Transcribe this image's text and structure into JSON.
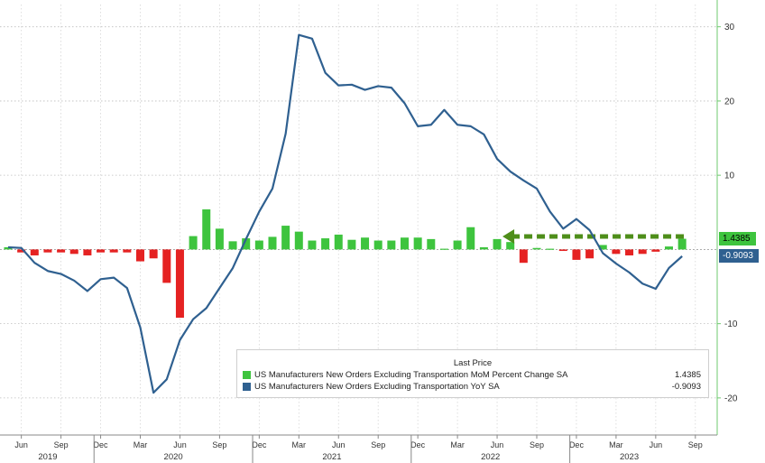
{
  "chart_data": {
    "type": "bar+line",
    "x_month_labels": [
      "Jun",
      "Sep",
      "Dec",
      "Mar",
      "Jun",
      "Sep",
      "Dec",
      "Mar",
      "Jun",
      "Sep",
      "Dec",
      "Mar",
      "Jun",
      "Sep",
      "Dec",
      "Mar",
      "Jun",
      "Sep"
    ],
    "year_labels": [
      "2019",
      "2020",
      "2021",
      "2022",
      "2023"
    ],
    "y_ticks": [
      30,
      20,
      10,
      -10,
      -20
    ],
    "ylim": [
      -25,
      33
    ],
    "series": [
      {
        "name": "US Manufacturers New Orders Excluding Transportation MoM Percent Change SA",
        "type": "bar",
        "last": "1.4385",
        "color_pos": "#3ec43e",
        "color_neg": "#e52222",
        "values": [
          0.3,
          -0.4,
          -0.8,
          -0.4,
          -0.4,
          -0.6,
          -0.8,
          -0.4,
          -0.4,
          -0.4,
          -1.6,
          -1.2,
          -4.5,
          -9.2,
          1.8,
          5.4,
          2.8,
          1.1,
          1.5,
          1.2,
          1.7,
          3.2,
          2.4,
          1.2,
          1.5,
          2.0,
          1.3,
          1.6,
          1.2,
          1.2,
          1.6,
          1.6,
          1.4,
          0.1,
          1.2,
          3.0,
          0.3,
          1.4,
          1.0,
          -1.8,
          0.2,
          0.1,
          -0.2,
          -1.4,
          -1.2,
          0.6,
          -0.6,
          -0.8,
          -0.6,
          -0.3,
          0.4,
          1.44
        ]
      },
      {
        "name": "US Manufacturers New Orders Excluding Transportation YoY SA",
        "type": "line",
        "last": "-0.9093",
        "color": "#2f6090",
        "values": [
          0.3,
          0.2,
          -1.8,
          -2.9,
          -3.3,
          -4.2,
          -5.6,
          -4.0,
          -3.8,
          -5.2,
          -10.5,
          -19.3,
          -17.5,
          -12.2,
          -9.4,
          -7.9,
          -5.2,
          -2.5,
          1.4,
          5.1,
          8.2,
          15.6,
          28.9,
          28.4,
          23.8,
          22.1,
          22.2,
          21.5,
          22.0,
          21.8,
          19.7,
          16.6,
          16.8,
          18.8,
          16.8,
          16.6,
          15.5,
          12.2,
          10.5,
          9.3,
          8.2,
          5.1,
          2.8,
          4.1,
          2.6,
          -0.5,
          -1.9,
          -3.1,
          -4.6,
          -5.3,
          -2.5,
          -0.91
        ]
      }
    ],
    "annotation": "dashed green arrow pointing left at latest MoM level",
    "legend": {
      "title": "Last Price",
      "entries": [
        {
          "label": "US Manufacturers New Orders Excluding Transportation MoM Percent Change SA",
          "value": "1.4385",
          "color": "#3ec43e"
        },
        {
          "label": "US Manufacturers New Orders Excluding Transportation YoY SA",
          "value": "-0.9093",
          "color": "#2f6090"
        }
      ]
    },
    "grid": true
  }
}
